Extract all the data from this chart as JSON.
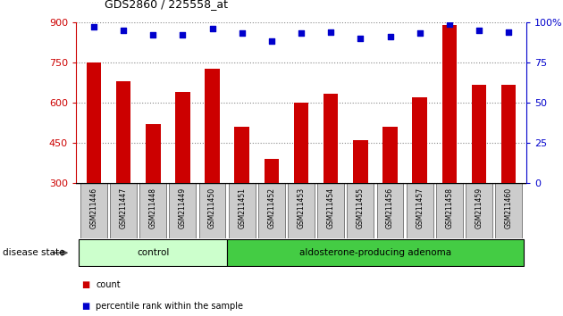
{
  "title": "GDS2860 / 225558_at",
  "samples": [
    "GSM211446",
    "GSM211447",
    "GSM211448",
    "GSM211449",
    "GSM211450",
    "GSM211451",
    "GSM211452",
    "GSM211453",
    "GSM211454",
    "GSM211455",
    "GSM211456",
    "GSM211457",
    "GSM211458",
    "GSM211459",
    "GSM211460"
  ],
  "counts": [
    750,
    680,
    520,
    640,
    725,
    510,
    390,
    600,
    635,
    460,
    510,
    620,
    890,
    665,
    665
  ],
  "percentiles": [
    97,
    95,
    92,
    92,
    96,
    93,
    88,
    93,
    94,
    90,
    91,
    93,
    99,
    95,
    94
  ],
  "ylim_left": [
    300,
    900
  ],
  "ylim_right": [
    0,
    100
  ],
  "yticks_left": [
    300,
    450,
    600,
    750,
    900
  ],
  "yticks_right": [
    0,
    25,
    50,
    75,
    100
  ],
  "bar_color": "#cc0000",
  "dot_color": "#0000cc",
  "groups": [
    {
      "label": "control",
      "start": 0,
      "end": 4,
      "color": "#ccffcc"
    },
    {
      "label": "aldosterone-producing adenoma",
      "start": 5,
      "end": 14,
      "color": "#55dd55"
    }
  ],
  "disease_label": "disease state",
  "legend_count_label": "count",
  "legend_percentile_label": "percentile rank within the sample",
  "grid_color": "#888888",
  "bg_color": "#ffffff",
  "tick_label_bg": "#cccccc",
  "spine_color": "#000000"
}
